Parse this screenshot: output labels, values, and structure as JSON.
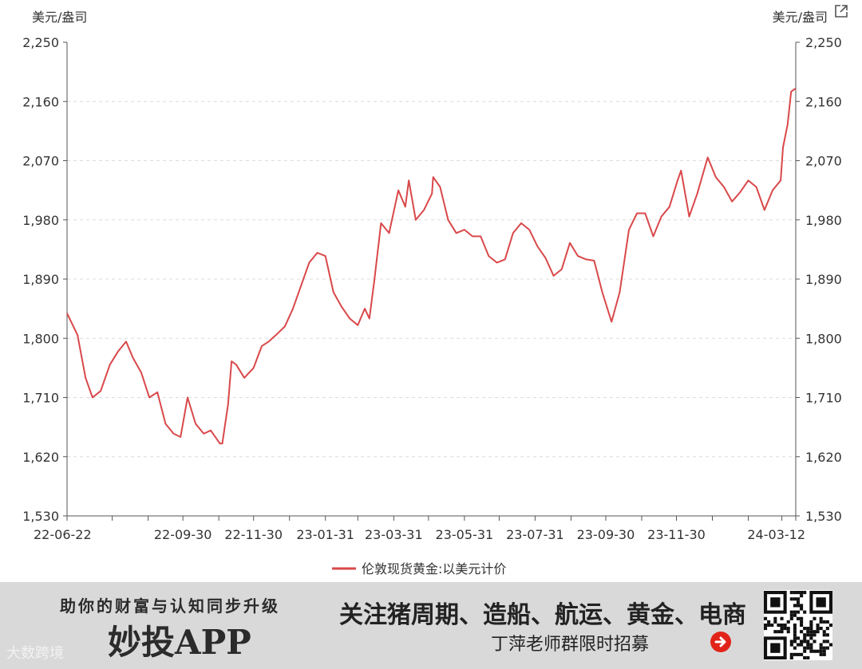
{
  "chart_data": {
    "type": "line",
    "left_unit": "美元/盎司",
    "right_unit": "美元/盎司",
    "ylim": [
      1530,
      2250
    ],
    "y_ticks": [
      "2,250",
      "2,160",
      "2,070",
      "1,980",
      "1,890",
      "1,800",
      "1,710",
      "1,620",
      "1,530"
    ],
    "x_ticks": [
      "22-06-22",
      "22-09-30",
      "22-11-30",
      "23-01-31",
      "23-03-31",
      "23-05-31",
      "23-07-31",
      "23-09-30",
      "23-11-30",
      "24-03-12"
    ],
    "grid": "horizontal dashed",
    "legend_position": "bottom-center",
    "series": [
      {
        "name": "伦敦现货黄金:以美元计价",
        "color": "#d9484a",
        "x": [
          "2022-06-22",
          "2022-07-01",
          "2022-07-08",
          "2022-07-14",
          "2022-07-21",
          "2022-07-29",
          "2022-08-05",
          "2022-08-12",
          "2022-08-18",
          "2022-08-25",
          "2022-09-01",
          "2022-09-08",
          "2022-09-15",
          "2022-09-22",
          "2022-09-28",
          "2022-10-04",
          "2022-10-11",
          "2022-10-18",
          "2022-10-24",
          "2022-11-01",
          "2022-11-03",
          "2022-11-08",
          "2022-11-11",
          "2022-11-15",
          "2022-11-22",
          "2022-11-30",
          "2022-12-07",
          "2022-12-13",
          "2022-12-20",
          "2022-12-27",
          "2023-01-03",
          "2023-01-10",
          "2023-01-17",
          "2023-01-24",
          "2023-01-31",
          "2023-02-07",
          "2023-02-14",
          "2023-02-21",
          "2023-02-28",
          "2023-03-06",
          "2023-03-10",
          "2023-03-14",
          "2023-03-20",
          "2023-03-27",
          "2023-04-04",
          "2023-04-10",
          "2023-04-13",
          "2023-04-19",
          "2023-04-26",
          "2023-05-03",
          "2023-05-04",
          "2023-05-10",
          "2023-05-17",
          "2023-05-24",
          "2023-05-31",
          "2023-06-07",
          "2023-06-14",
          "2023-06-21",
          "2023-06-28",
          "2023-07-05",
          "2023-07-12",
          "2023-07-19",
          "2023-07-26",
          "2023-08-02",
          "2023-08-09",
          "2023-08-16",
          "2023-08-23",
          "2023-08-30",
          "2023-09-06",
          "2023-09-13",
          "2023-09-20",
          "2023-09-27",
          "2023-10-05",
          "2023-10-12",
          "2023-10-20",
          "2023-10-27",
          "2023-11-03",
          "2023-11-10",
          "2023-11-17",
          "2023-11-24",
          "2023-12-01",
          "2023-12-04",
          "2023-12-11",
          "2023-12-18",
          "2023-12-27",
          "2024-01-03",
          "2024-01-10",
          "2024-01-17",
          "2024-01-24",
          "2024-01-31",
          "2024-02-07",
          "2024-02-14",
          "2024-02-21",
          "2024-02-28",
          "2024-03-01",
          "2024-03-05",
          "2024-03-08",
          "2024-03-12"
        ],
        "values": [
          1838,
          1805,
          1740,
          1710,
          1720,
          1760,
          1780,
          1795,
          1770,
          1748,
          1710,
          1718,
          1670,
          1655,
          1650,
          1710,
          1670,
          1655,
          1660,
          1640,
          1640,
          1700,
          1765,
          1760,
          1740,
          1755,
          1788,
          1795,
          1806,
          1818,
          1845,
          1880,
          1915,
          1930,
          1925,
          1870,
          1848,
          1830,
          1820,
          1845,
          1830,
          1885,
          1975,
          1960,
          2025,
          2000,
          2040,
          1980,
          1995,
          2020,
          2045,
          2030,
          1980,
          1960,
          1965,
          1955,
          1955,
          1925,
          1915,
          1920,
          1960,
          1975,
          1965,
          1940,
          1922,
          1895,
          1905,
          1945,
          1925,
          1920,
          1918,
          1870,
          1825,
          1870,
          1965,
          1990,
          1990,
          1955,
          1985,
          2000,
          2040,
          2055,
          1985,
          2020,
          2075,
          2045,
          2030,
          2008,
          2022,
          2040,
          2030,
          1995,
          2025,
          2040,
          2090,
          2125,
          2175,
          2180
        ]
      }
    ]
  },
  "banner": {
    "tagline": "助你的财富与认知同步升级",
    "app_name": "妙投APP",
    "watermark": "大数跨境",
    "headline": "关注猪周期、造船、航运、黄金、电商",
    "recruit": "丁萍老师群限时招募"
  }
}
